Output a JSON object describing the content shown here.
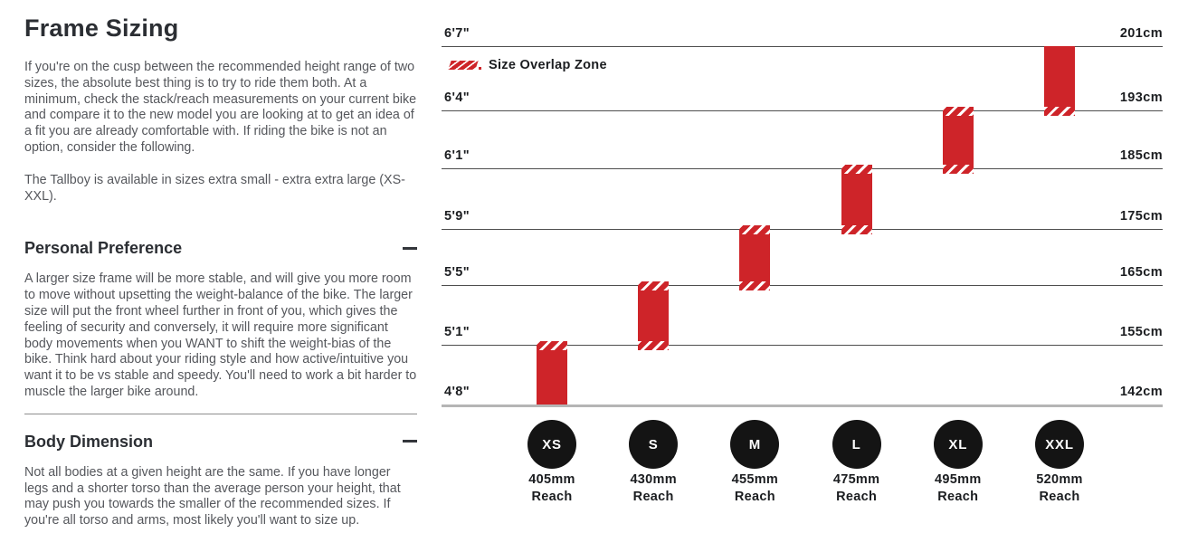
{
  "left": {
    "title": "Frame Sizing",
    "intro": "If you're on the cusp between the recommended height range of two sizes, the absolute best thing is to try to ride them both. At a minimum, check the stack/reach measurements on your current bike and compare it to the new model you are looking at to get an idea of a fit you are already comfortable with. If riding the bike is not an option, consider the following.",
    "availability": "The Tallboy is available in sizes extra small - extra extra large (XS-XXL).",
    "sections": [
      {
        "heading": "Personal Preference",
        "toggle_icon": "minus-icon",
        "body": "A larger size frame will be more stable, and will give you more room to move without upsetting the weight-balance of the bike. The larger size will put the front wheel further in front of you, which gives the feeling of security and conversely, it will require more significant body movements when you WANT to shift the weight-bias of the bike. Think hard about your riding style and how active/intuitive you want it to be vs stable and speedy. You'll need to work a bit harder to muscle the larger bike around."
      },
      {
        "heading": "Body Dimension",
        "toggle_icon": "minus-icon",
        "body": "Not all bodies at a given height are the same. If you have longer legs and a shorter torso than the average person your height, that may push you towards the smaller of the recommended sizes. If you're all torso and arms, most likely you'll want to size up."
      }
    ]
  },
  "chart_data": {
    "type": "bar",
    "variant": "vertical-range-bars",
    "legend": "Size Overlap Zone",
    "grid": true,
    "colors": {
      "bar": "#ce2429",
      "circle": "#141414",
      "gridline": "#4e4e4e",
      "baseline": "#b5b5b5"
    },
    "rows": [
      {
        "imperial": "6'7\"",
        "metric": "201cm"
      },
      {
        "imperial": "6'4\"",
        "metric": "193cm"
      },
      {
        "imperial": "6'1\"",
        "metric": "185cm"
      },
      {
        "imperial": "5'9\"",
        "metric": "175cm"
      },
      {
        "imperial": "5'5\"",
        "metric": "165cm"
      },
      {
        "imperial": "5'1\"",
        "metric": "155cm"
      },
      {
        "imperial": "4'8\"",
        "metric": "142cm"
      }
    ],
    "sizes": [
      {
        "label": "XS",
        "reach": "405mm",
        "caption": "Reach",
        "top_row": 5,
        "bottom_row": 6,
        "overlap_top": true,
        "overlap_bottom": false
      },
      {
        "label": "S",
        "reach": "430mm",
        "caption": "Reach",
        "top_row": 4,
        "bottom_row": 5,
        "overlap_top": true,
        "overlap_bottom": true
      },
      {
        "label": "M",
        "reach": "455mm",
        "caption": "Reach",
        "top_row": 3,
        "bottom_row": 4,
        "overlap_top": true,
        "overlap_bottom": true
      },
      {
        "label": "L",
        "reach": "475mm",
        "caption": "Reach",
        "top_row": 2,
        "bottom_row": 3,
        "overlap_top": true,
        "overlap_bottom": true
      },
      {
        "label": "XL",
        "reach": "495mm",
        "caption": "Reach",
        "top_row": 1,
        "bottom_row": 2,
        "overlap_top": true,
        "overlap_bottom": true
      },
      {
        "label": "XXL",
        "reach": "520mm",
        "caption": "Reach",
        "top_row": 0,
        "bottom_row": 1,
        "overlap_top": false,
        "overlap_bottom": true
      }
    ]
  }
}
